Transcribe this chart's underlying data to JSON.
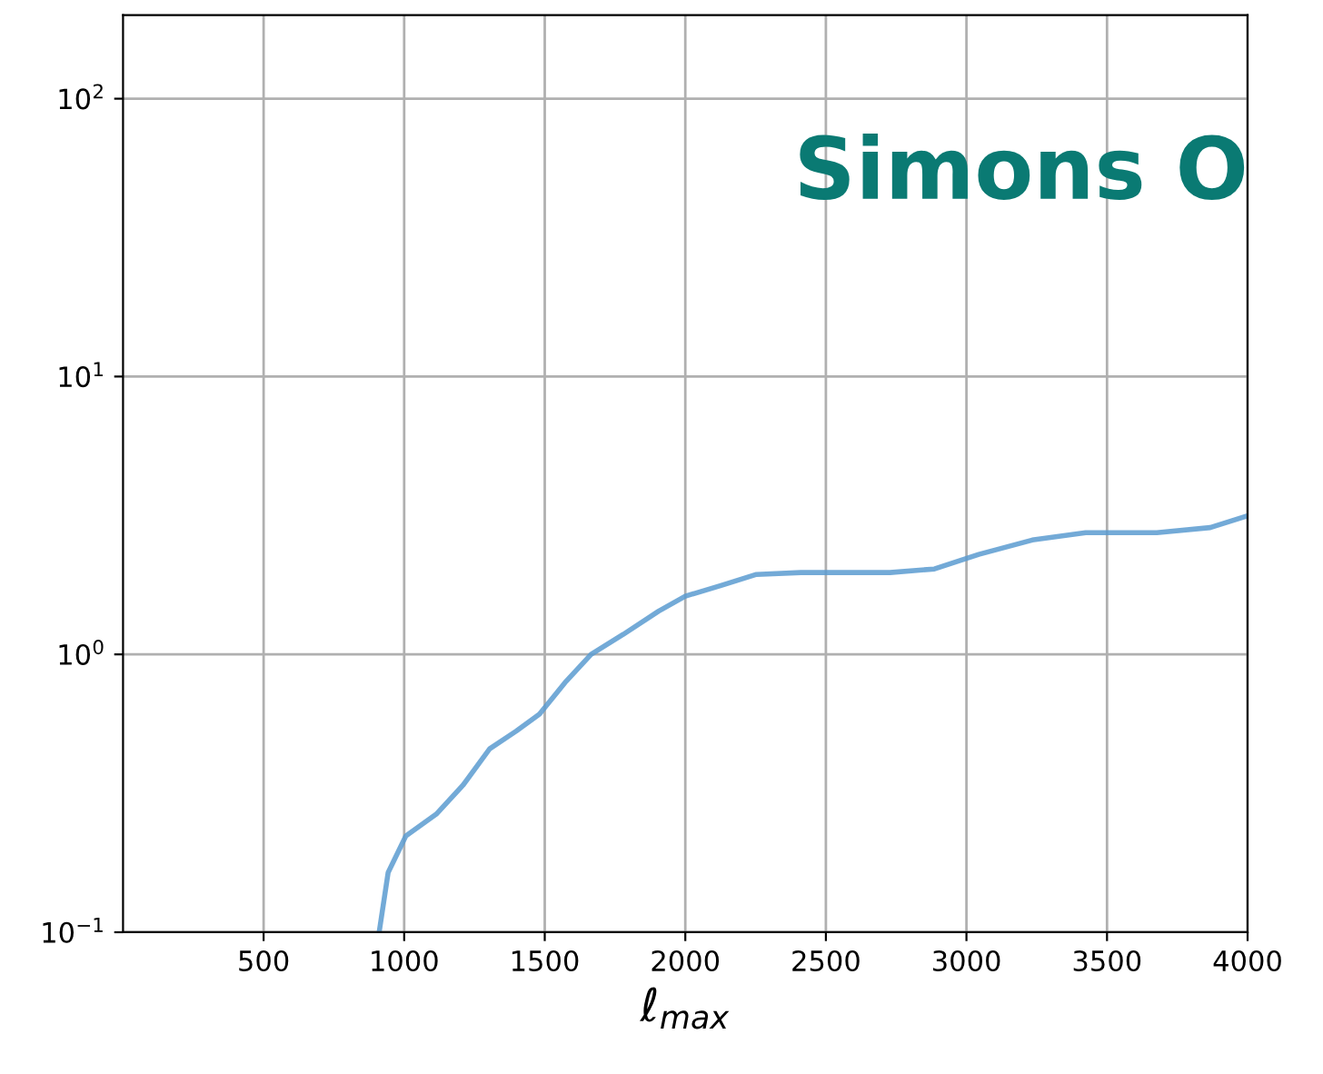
{
  "chart_data": {
    "type": "line",
    "xlabel": "ℓ$_{max}$",
    "annotations": [
      "Simons O"
    ],
    "series": [
      {
        "color": "#5a9bd0",
        "x": [
          911,
          943,
          1006,
          1114,
          1209,
          1304,
          1399,
          1481,
          1576,
          1665,
          1779,
          1905,
          2000,
          2127,
          2253,
          2411,
          2728,
          2886,
          3044,
          3234,
          3424,
          3677,
          3867,
          3994
        ],
        "values": [
          0.1,
          0.164,
          0.222,
          0.266,
          0.338,
          0.457,
          0.53,
          0.609,
          0.8,
          1.0,
          1.18,
          1.43,
          1.62,
          1.77,
          1.94,
          1.97,
          1.97,
          2.03,
          2.29,
          2.58,
          2.74,
          2.74,
          2.86,
          3.14
        ]
      }
    ],
    "xlim": [
      0,
      4000
    ],
    "xticks": [
      500,
      1000,
      1500,
      2000,
      2500,
      3000,
      3500,
      4000
    ],
    "ylim": [
      0.1,
      200
    ],
    "log": "y",
    "yticks": [
      {
        "value": 0.1,
        "label": "10$^{−1}$"
      },
      {
        "value": 1,
        "label": "10$^{0}$"
      },
      {
        "value": 10,
        "label": "10$^{1}$"
      },
      {
        "value": 100,
        "label": "10$^{2}$"
      }
    ],
    "grid": true,
    "marker": "none",
    "line_style": "solid",
    "legend": false
  }
}
